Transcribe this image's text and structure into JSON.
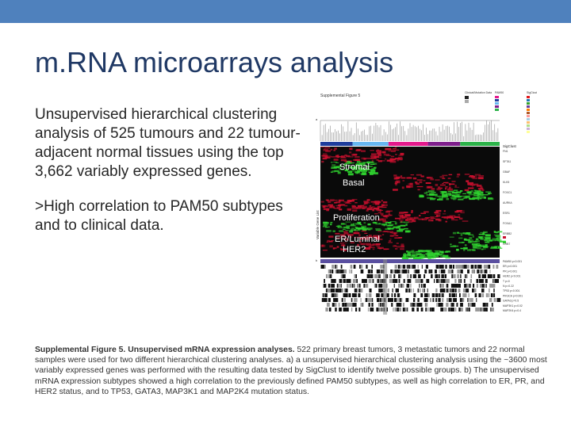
{
  "slide": {
    "title": "m.RNA microarrays analysis",
    "paragraph1": "Unsupervised hierarchical clustering analysis of 525 tumours and 22 tumour-adjacent normal tissues using the top 3,662 variably expressed genes.",
    "paragraph2": ">High correlation to PAM50 subtypes and to clinical data."
  },
  "figure": {
    "header": "Supplemental Figure 5",
    "panel_a": "a",
    "panel_b": "b",
    "y_axis_label": "Variable Gene List",
    "cluster_labels": [
      "Stromal",
      "Basal",
      "Proliferation",
      "ER/Luminal",
      "HER2"
    ],
    "sigclust_label": "SigClust",
    "legend_titles": [
      "Clinical/Mutation Data",
      "PAM50",
      "SigClust"
    ],
    "row_labels": [
      "PAM50 p<0.001",
      "ER p<0.001",
      "PR p<0.001",
      "HER2 p<0.001",
      "T p=0",
      "N p=0.22",
      "TP53 p<0.001",
      "PIK3CA p<0.001",
      "GATA3 p=0.5",
      "MAP3K1 p=0.02",
      "MAP2K4 p=0.4"
    ],
    "gene_labels": [
      "FN1",
      "SFTA1",
      "GBAF",
      "KLK5",
      "FOXC1",
      "AURKA",
      "ESR1",
      "FOXA1",
      "ERBB2",
      "GRB7"
    ]
  },
  "caption": {
    "bold": "Supplemental Figure 5. Unsupervised mRNA expression analyses.",
    "text": " 522 primary breast tumors, 3 metastatic tumors and 22 normal samples were used for two different hierarchical clustering analyses. a) a unsupervised hierarchical clustering analysis using the ~3600 most variably expressed genes was performed with the resulting data tested by SigClust to identify twelve possible groups. b) The unsupervised mRNA expression subtypes showed a high correlation to the previously defined PAM50 subtypes, as well as high correlation to ER, PR, and HER2 status, and to TP53, GATA3, MAP3K1 and MAP2K4 mutation status."
  },
  "colors": {
    "topbar": "#4f81bd",
    "title": "#1f3864",
    "heatmap_red": "#c8102e",
    "heatmap_green": "#2fd22f"
  }
}
